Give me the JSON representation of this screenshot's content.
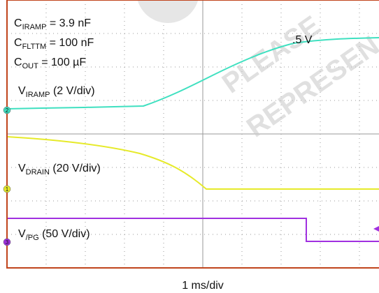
{
  "screen": {
    "annotations": [
      {
        "symbol": "C",
        "subscript": "IRAMP",
        "text": " = 3.9 nF"
      },
      {
        "symbol": "C",
        "subscript": "FLTTM",
        "text": " = 100 nF"
      },
      {
        "symbol": "C",
        "subscript": "OUT",
        "text": " = 100 µF"
      }
    ],
    "traces": [
      {
        "symbol": "V",
        "subscript": "IRAMP",
        "text": " (2 V/div)",
        "marker": "2"
      },
      {
        "symbol": "V",
        "subscript": "DRAIN",
        "text": " (20 V/div)",
        "marker": "1"
      },
      {
        "symbol": "V",
        "subscript": "/PG",
        "text": " (50 V/div)",
        "marker": "3"
      }
    ],
    "fragment": ".5 V",
    "watermark": [
      "PLEASE",
      "REPRESEN"
    ],
    "time_scale": "1 ms/div"
  }
}
